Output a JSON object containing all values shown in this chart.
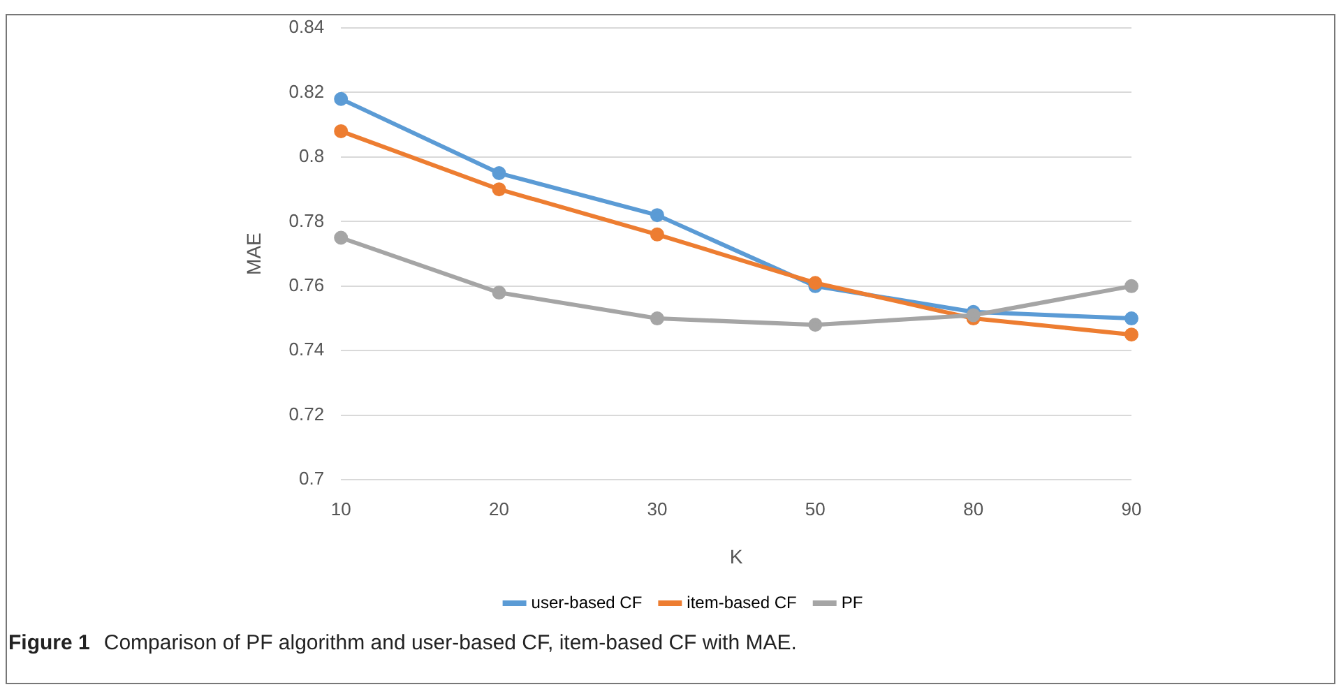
{
  "chart_data": {
    "type": "line",
    "xlabel": "K",
    "ylabel": "MAE",
    "categories": [
      "10",
      "20",
      "30",
      "50",
      "80",
      "90"
    ],
    "series": [
      {
        "name": "user-based CF",
        "color": "#5b9bd5",
        "values": [
          0.818,
          0.795,
          0.782,
          0.76,
          0.752,
          0.75
        ]
      },
      {
        "name": "item-based CF",
        "color": "#ed7d31",
        "values": [
          0.808,
          0.79,
          0.776,
          0.761,
          0.75,
          0.745
        ]
      },
      {
        "name": "PF",
        "color": "#a5a5a5",
        "values": [
          0.775,
          0.758,
          0.75,
          0.748,
          0.751,
          0.76
        ]
      }
    ],
    "ylim": [
      0.7,
      0.84
    ],
    "yticks": [
      0.7,
      0.72,
      0.74,
      0.76,
      0.78,
      0.8,
      0.82,
      0.84
    ],
    "grid": "y",
    "legend": "bottom",
    "marker": "circle",
    "line_style": "solid",
    "annotations": [
      "Figure 1",
      "Comparison of PF algorithm and user-based CF, item-based CF with MAE."
    ]
  }
}
